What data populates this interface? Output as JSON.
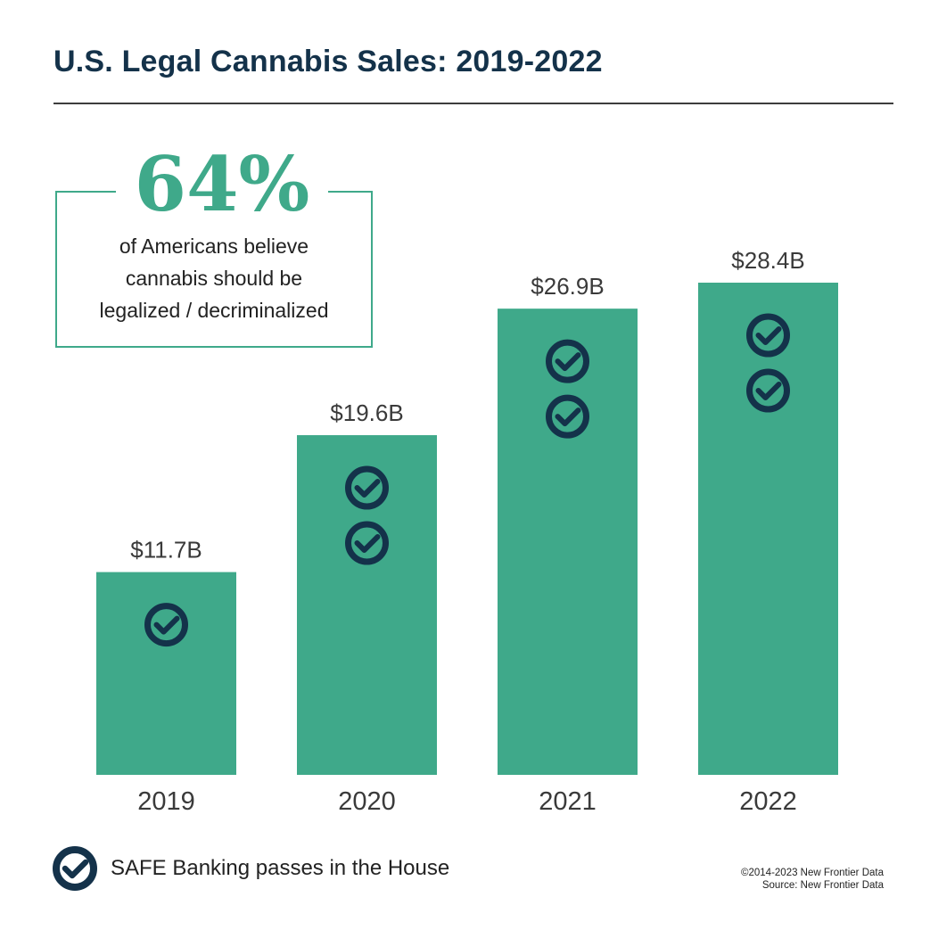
{
  "header": {
    "title": "U.S. Legal Cannabis Sales: 2019-2022"
  },
  "callout": {
    "stat": "64%",
    "lines": [
      "of Americans believe",
      "cannabis should be",
      "legalized / decriminalized"
    ]
  },
  "legend": {
    "icon": "check-circle-icon",
    "label": "SAFE Banking passes in the House"
  },
  "footer": {
    "copyright": "©2014-2023  New Frontier Data",
    "source": "Source: New Frontier Data"
  },
  "colors": {
    "bar": "#3fa98a",
    "icon": "#14324a",
    "title": "#14324a"
  },
  "chart_data": {
    "type": "bar",
    "categories": [
      "2019",
      "2020",
      "2021",
      "2022"
    ],
    "values": [
      11.7,
      19.6,
      26.9,
      28.4
    ],
    "value_labels": [
      "$11.7B",
      "$19.6B",
      "$26.9B",
      "$28.4B"
    ],
    "markers_per_bar": [
      1,
      2,
      2,
      2
    ],
    "title": "U.S. Legal Cannabis Sales: 2019-2022",
    "xlabel": "",
    "ylabel": "",
    "ylim": [
      0,
      28.4
    ],
    "grid": false,
    "legend_position": "bottom-left"
  }
}
